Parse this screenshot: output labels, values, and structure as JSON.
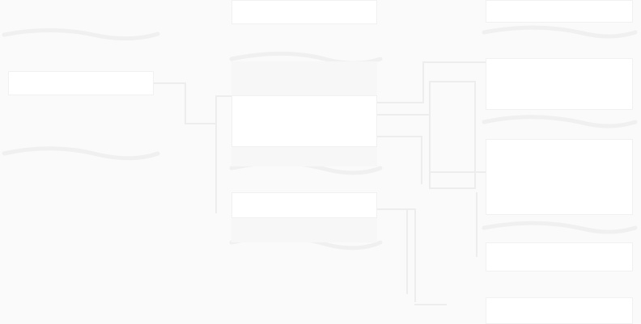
{
  "diagram": {
    "background": "#fafafa",
    "panel_color": "#ffffff",
    "connector_color": "#ededed",
    "wave_color": "#f0f0f0",
    "texts": []
  }
}
